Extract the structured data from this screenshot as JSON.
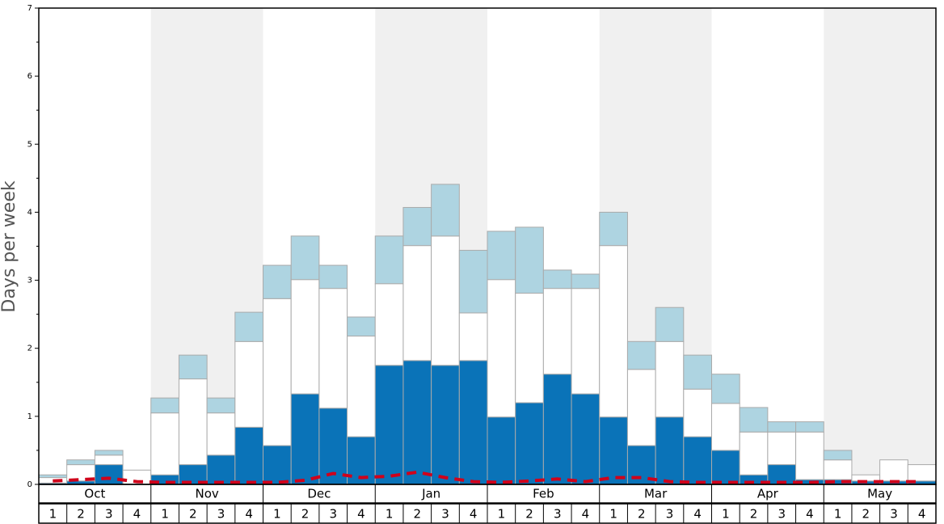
{
  "chart_data": {
    "type": "stacked_bar",
    "y_label": "Days per week",
    "months": [
      "Oct",
      "Nov",
      "Dec",
      "Jan",
      "Feb",
      "Mar",
      "Apr",
      "May"
    ],
    "categories": [
      "1",
      "2",
      "3",
      "4",
      "1",
      "2",
      "3",
      "4",
      "1",
      "2",
      "3",
      "4",
      "1",
      "2",
      "3",
      "4",
      "1",
      "2",
      "3",
      "4",
      "1",
      "2",
      "3",
      "4",
      "1",
      "2",
      "3",
      "4",
      "1",
      "2",
      "3",
      "4"
    ],
    "series": [
      {
        "color": "#0a73b8",
        "values": [
          0.02,
          0.05,
          0.29,
          0,
          0.14,
          0.29,
          0.43,
          0.84,
          0.57,
          1.33,
          1.12,
          0.7,
          1.75,
          1.82,
          1.75,
          1.82,
          0.99,
          1.2,
          1.62,
          1.33,
          0.99,
          0.57,
          0.99,
          0.7,
          0.5,
          0.14,
          0.29,
          0.07,
          0.07,
          0.05,
          0.05,
          0.05
        ]
      },
      {
        "color": "#ffffff",
        "values": [
          0.08,
          0.24,
          0.14,
          0.21,
          0.91,
          1.26,
          0.62,
          1.26,
          2.16,
          1.68,
          1.76,
          1.48,
          1.2,
          1.69,
          1.9,
          0.7,
          2.02,
          1.61,
          1.26,
          1.55,
          2.52,
          1.12,
          1.11,
          0.7,
          0.69,
          0.63,
          0.48,
          0.7,
          0.29,
          0.09,
          0.31,
          0.24
        ]
      },
      {
        "color": "#aed4e1",
        "values": [
          0.04,
          0.07,
          0.07,
          0,
          0.22,
          0.35,
          0.22,
          0.43,
          0.49,
          0.64,
          0.34,
          0.28,
          0.7,
          0.56,
          0.76,
          0.92,
          0.71,
          0.97,
          0.27,
          0.21,
          0.49,
          0.41,
          0.5,
          0.5,
          0.43,
          0.36,
          0.15,
          0.15,
          0.14,
          0,
          0,
          0
        ]
      }
    ],
    "line": {
      "color": "#d0021b",
      "dashed": true,
      "values": [
        0.05,
        0.07,
        0.09,
        0.04,
        0.03,
        0.03,
        0.03,
        0.03,
        0.03,
        0.06,
        0.16,
        0.1,
        0.12,
        0.18,
        0.1,
        0.04,
        0.03,
        0.05,
        0.08,
        0.04,
        0.1,
        0.1,
        0.04,
        0.03,
        0.03,
        0.03,
        0.03,
        0.03,
        0.04,
        0.04,
        0.04,
        0.04
      ]
    },
    "ylim": [
      0,
      7
    ],
    "yticks": [
      0,
      1,
      2,
      3,
      4,
      5,
      6,
      7
    ],
    "yminor_ticks": [
      0.5,
      1.5,
      2.5,
      3.5,
      4.5,
      5.5,
      6.5
    ],
    "shade_alternate_months": true
  }
}
